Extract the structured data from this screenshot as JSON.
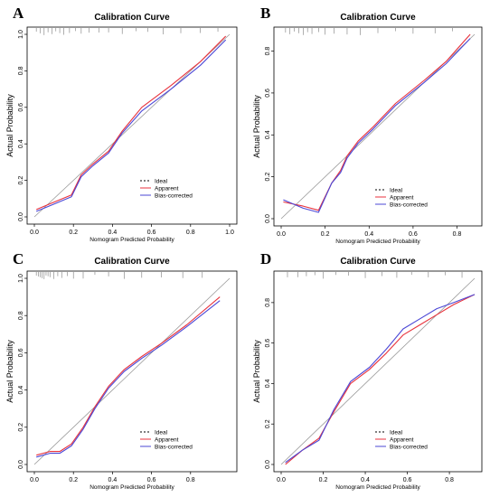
{
  "legend_labels": [
    "Ideal",
    "Apparent",
    "Bias-corrected"
  ],
  "colors": {
    "ideal": "#000000",
    "apparent": "#e8323c",
    "bias_corrected": "#4b47d6",
    "diagonal": "#9a9a9a",
    "rug": "#7a7a7a"
  },
  "chart_data": [
    {
      "panel": "A",
      "type": "line",
      "title": "Calibration Curve",
      "xlabel": "Nomogram Predicted Probability",
      "ylabel": "Actual Probability",
      "xlim": [
        0.0,
        1.0
      ],
      "ylim": [
        0.0,
        1.0
      ],
      "xticks": [
        "0.0",
        "0.2",
        "0.4",
        "0.6",
        "0.8",
        "1.0"
      ],
      "yticks": [
        "0.0",
        "0.2",
        "0.4",
        "0.6",
        "0.8",
        "1.0"
      ],
      "legend_position": "center-left",
      "rug": [
        0.01,
        0.03,
        0.05,
        0.07,
        0.09,
        0.11,
        0.13,
        0.15,
        0.18,
        0.21,
        0.24,
        0.28,
        0.33,
        0.38,
        0.45,
        0.52,
        0.58,
        0.66,
        0.75,
        0.85,
        0.94
      ],
      "series": [
        {
          "name": "Apparent",
          "x": [
            0.01,
            0.1,
            0.19,
            0.24,
            0.3,
            0.38,
            0.45,
            0.55,
            0.7,
            0.85,
            0.98
          ],
          "y": [
            0.04,
            0.08,
            0.12,
            0.23,
            0.29,
            0.36,
            0.47,
            0.6,
            0.72,
            0.85,
            0.99
          ]
        },
        {
          "name": "Bias-corrected",
          "x": [
            0.01,
            0.1,
            0.19,
            0.24,
            0.3,
            0.38,
            0.45,
            0.55,
            0.7,
            0.85,
            0.98
          ],
          "y": [
            0.03,
            0.07,
            0.11,
            0.22,
            0.28,
            0.35,
            0.46,
            0.58,
            0.7,
            0.83,
            0.97
          ]
        }
      ]
    },
    {
      "panel": "B",
      "type": "line",
      "title": "Calibration Curve",
      "xlabel": "Nomogram Predicted Probability",
      "ylabel": "Actual Probability",
      "xlim": [
        0.0,
        0.88
      ],
      "ylim": [
        0.0,
        0.88
      ],
      "xticks": [
        "0.0",
        "0.2",
        "0.4",
        "0.6",
        "0.8"
      ],
      "yticks": [
        "0.0",
        "0.2",
        "0.4",
        "0.6",
        "0.8"
      ],
      "legend_position": "bottom-right",
      "rug": [
        0.02,
        0.04,
        0.06,
        0.08,
        0.1,
        0.12,
        0.14,
        0.17,
        0.2,
        0.24,
        0.3,
        0.36,
        0.44,
        0.52,
        0.6,
        0.7,
        0.78
      ],
      "series": [
        {
          "name": "Apparent",
          "x": [
            0.01,
            0.1,
            0.17,
            0.23,
            0.27,
            0.3,
            0.35,
            0.42,
            0.52,
            0.65,
            0.75,
            0.86
          ],
          "y": [
            0.08,
            0.06,
            0.04,
            0.17,
            0.23,
            0.3,
            0.37,
            0.44,
            0.55,
            0.66,
            0.75,
            0.88
          ]
        },
        {
          "name": "Bias-corrected",
          "x": [
            0.01,
            0.1,
            0.17,
            0.23,
            0.27,
            0.3,
            0.35,
            0.42,
            0.52,
            0.65,
            0.75,
            0.86
          ],
          "y": [
            0.09,
            0.05,
            0.03,
            0.17,
            0.22,
            0.29,
            0.36,
            0.43,
            0.54,
            0.65,
            0.74,
            0.86
          ]
        }
      ]
    },
    {
      "panel": "C",
      "type": "line",
      "title": "Calibration Curve",
      "xlabel": "Nomogram Predicted Probability",
      "ylabel": "Actual Probability",
      "xlim": [
        0.0,
        1.0
      ],
      "ylim": [
        0.0,
        1.0
      ],
      "xticks": [
        "0.0",
        "0.2",
        "0.4",
        "0.6",
        "0.8"
      ],
      "yticks": [
        "0.0",
        "0.2",
        "0.4",
        "0.6",
        "0.8",
        "1.0"
      ],
      "legend_position": "bottom-right",
      "rug": [
        0.01,
        0.02,
        0.03,
        0.04,
        0.05,
        0.06,
        0.07,
        0.08,
        0.1,
        0.12,
        0.14,
        0.17,
        0.2,
        0.25,
        0.31,
        0.38,
        0.46,
        0.55,
        0.65,
        0.76,
        0.86
      ],
      "series": [
        {
          "name": "Apparent",
          "x": [
            0.01,
            0.08,
            0.13,
            0.19,
            0.25,
            0.31,
            0.38,
            0.46,
            0.55,
            0.65,
            0.78,
            0.95
          ],
          "y": [
            0.05,
            0.07,
            0.07,
            0.11,
            0.2,
            0.31,
            0.42,
            0.51,
            0.58,
            0.65,
            0.75,
            0.9
          ]
        },
        {
          "name": "Bias-corrected",
          "x": [
            0.01,
            0.08,
            0.13,
            0.19,
            0.25,
            0.31,
            0.38,
            0.46,
            0.55,
            0.65,
            0.78,
            0.95
          ],
          "y": [
            0.04,
            0.06,
            0.06,
            0.1,
            0.19,
            0.3,
            0.41,
            0.5,
            0.57,
            0.64,
            0.74,
            0.88
          ]
        }
      ]
    },
    {
      "panel": "D",
      "type": "line",
      "title": "Calibration Curve",
      "xlabel": "Nomogram Predicted Probability",
      "ylabel": "Actual Probability",
      "xlim": [
        0.0,
        0.92
      ],
      "ylim": [
        0.0,
        0.92
      ],
      "xticks": [
        "0.0",
        "0.2",
        "0.4",
        "0.6",
        "0.8"
      ],
      "yticks": [
        "0.0",
        "0.2",
        "0.4",
        "0.6",
        "0.8"
      ],
      "legend_position": "bottom-right",
      "rug": [
        0.03,
        0.08,
        0.12,
        0.16,
        0.2,
        0.26,
        0.32,
        0.4,
        0.48,
        0.55,
        0.62,
        0.7,
        0.78,
        0.86
      ],
      "series": [
        {
          "name": "Apparent",
          "x": [
            0.02,
            0.1,
            0.18,
            0.25,
            0.33,
            0.42,
            0.5,
            0.58,
            0.66,
            0.74,
            0.82,
            0.92
          ],
          "y": [
            0.0,
            0.07,
            0.13,
            0.26,
            0.4,
            0.47,
            0.55,
            0.64,
            0.69,
            0.74,
            0.79,
            0.84
          ]
        },
        {
          "name": "Bias-corrected",
          "x": [
            0.02,
            0.1,
            0.18,
            0.25,
            0.33,
            0.42,
            0.5,
            0.58,
            0.66,
            0.74,
            0.82,
            0.92
          ],
          "y": [
            0.01,
            0.07,
            0.12,
            0.27,
            0.41,
            0.48,
            0.57,
            0.67,
            0.72,
            0.77,
            0.8,
            0.84
          ]
        }
      ]
    }
  ]
}
